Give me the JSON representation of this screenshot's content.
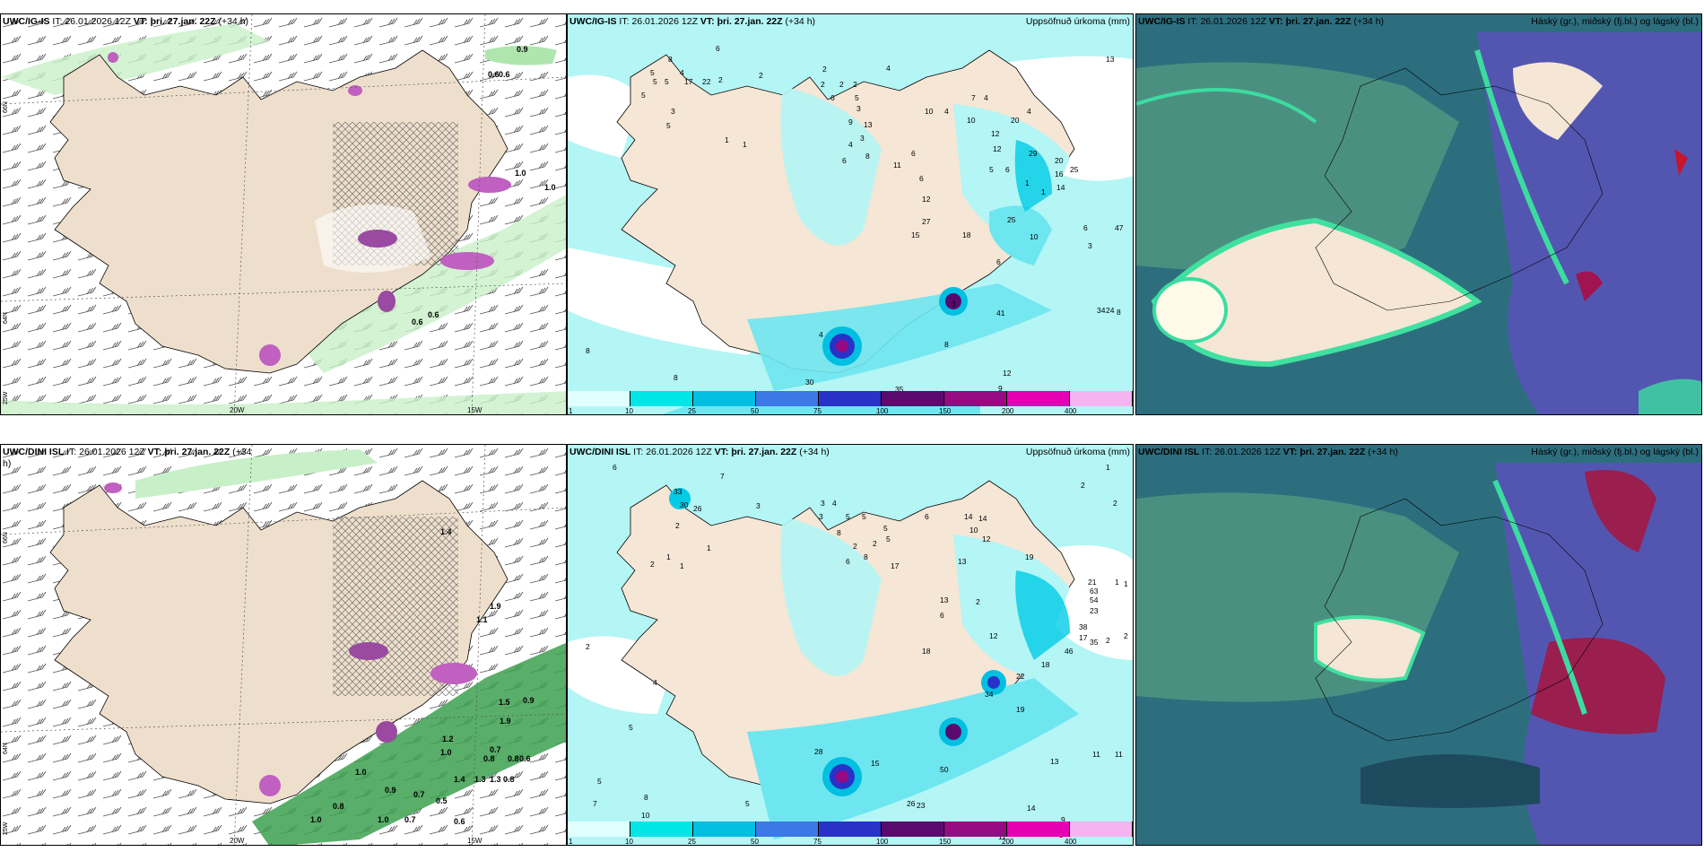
{
  "panels": [
    {
      "id": "tl",
      "model": "UWC/IG-IS",
      "it_label": "IT:",
      "it_value": "26.01.2026 12Z",
      "vt_label": "VT:",
      "vt_value": "þri. 27.jan. 22Z",
      "lead": "(+34 h)",
      "right_title": "",
      "lat_labels": [
        "66N",
        "64N",
        "25W"
      ],
      "lon_labels": [
        "20W",
        "15W"
      ],
      "values": [
        "0.9",
        "0.6",
        "0.6",
        "1.0",
        "1.0",
        "0.6",
        "0.6"
      ]
    },
    {
      "id": "tm",
      "model": "UWC/IG-IS",
      "it_label": "IT:",
      "it_value": "26.01.2026 12Z",
      "vt_label": "VT:",
      "vt_value": "þri. 27.jan. 22Z",
      "lead": "(+34 h)",
      "right_title": "Uppsöfnuð úrkoma (mm)",
      "colorbar": {
        "labels": [
          "1",
          "10",
          "25",
          "50",
          "75",
          "100",
          "150",
          "200",
          "400"
        ],
        "colors": [
          "#e0ffff",
          "#00e5e5",
          "#00bfe0",
          "#3c78e6",
          "#2832c8",
          "#5a0a6e",
          "#960a82",
          "#e600b4",
          "#f5b4f0"
        ]
      },
      "values": [
        "6",
        "2",
        "2",
        "8",
        "5",
        "4",
        "5",
        "5",
        "5",
        "17",
        "22",
        "3",
        "5",
        "1",
        "1",
        "2",
        "2",
        "2",
        "2",
        "7",
        "4",
        "6",
        "5",
        "4",
        "3",
        "10",
        "10",
        "12",
        "20",
        "4",
        "4",
        "12",
        "29",
        "20",
        "13",
        "9",
        "3",
        "8",
        "4",
        "6",
        "11",
        "6",
        "6",
        "12",
        "5",
        "6",
        "16",
        "25",
        "1",
        "1",
        "14",
        "27",
        "25",
        "15",
        "18",
        "10",
        "6",
        "47",
        "3",
        "6",
        "4",
        "3",
        "41",
        "34",
        "24",
        "8",
        "8",
        "8",
        "12",
        "30",
        "9",
        "35",
        "8",
        "13"
      ]
    },
    {
      "id": "tr",
      "model": "UWC/IG-IS",
      "it_label": "IT:",
      "it_value": "26.01.2026 12Z",
      "vt_label": "VT:",
      "vt_value": "þri. 27.jan. 22Z",
      "lead": "(+34 h)",
      "right_title": "Háský (gr.), miðský (fj.bl.) og lágský (bl.)"
    },
    {
      "id": "bl",
      "model": "UWC/DINI ISL",
      "it_label": "IT:",
      "it_value": "26.01.2026 12Z",
      "vt_label": "VT:",
      "vt_value": "þri. 27.jan. 22Z",
      "lead": "(+34",
      "lead2": "h)",
      "right_title": "",
      "lat_labels": [
        "66N",
        "64N",
        "25W"
      ],
      "lon_labels": [
        "20W",
        "15W"
      ],
      "values": [
        "1.4",
        "1.9",
        "1.1",
        "1.5",
        "0.9",
        "1.9",
        "1.2",
        "1.0",
        "0.7",
        "0.8",
        "0.8",
        "0.6",
        "1.0",
        "1.4",
        "1.3",
        "1.3",
        "0.8",
        "0.9",
        "0.7",
        "0.5",
        "0.8",
        "1.0",
        "0.7",
        "1.0",
        "0.6"
      ]
    },
    {
      "id": "bm",
      "model": "UWC/DINI ISL",
      "it_label": "IT:",
      "it_value": "26.01.2026 12Z",
      "vt_label": "VT:",
      "vt_value": "þri. 27.jan. 22Z",
      "lead": "(+34 h)",
      "right_title": "Uppsöfnuð úrkoma (mm)",
      "colorbar": {
        "labels": [
          "1",
          "10",
          "25",
          "50",
          "75",
          "100",
          "150",
          "200",
          "400"
        ],
        "colors": [
          "#e0ffff",
          "#00e5e5",
          "#00bfe0",
          "#3c78e6",
          "#2832c8",
          "#5a0a6e",
          "#960a82",
          "#e600b4",
          "#f5b4f0"
        ]
      },
      "values": [
        "6",
        "7",
        "3",
        "33",
        "30",
        "26",
        "2",
        "1",
        "2",
        "3",
        "1",
        "1",
        "14",
        "14",
        "10",
        "12",
        "2",
        "1",
        "2",
        "3",
        "4",
        "5",
        "5",
        "5",
        "6",
        "8",
        "5",
        "8",
        "2",
        "2",
        "17",
        "6",
        "13",
        "19",
        "21",
        "63",
        "54",
        "23",
        "1",
        "1",
        "13",
        "2",
        "6",
        "12",
        "38",
        "17",
        "35",
        "46",
        "2",
        "2",
        "18",
        "18",
        "22",
        "34",
        "19",
        "2",
        "4",
        "5",
        "28",
        "15",
        "50",
        "13",
        "11",
        "11",
        "5",
        "7",
        "8",
        "10",
        "5",
        "23",
        "26",
        "14",
        "9",
        "16",
        "15",
        "11",
        "9"
      ]
    },
    {
      "id": "br",
      "model": "UWC/DINI ISL",
      "it_label": "IT:",
      "it_value": "26.01.2026 12Z",
      "vt_label": "VT:",
      "vt_value": "þri. 27.jan. 22Z",
      "lead": "(+34 h)",
      "right_title": "Háský (gr.), miðský (fj.bl.) og lágský (bl.)"
    }
  ]
}
